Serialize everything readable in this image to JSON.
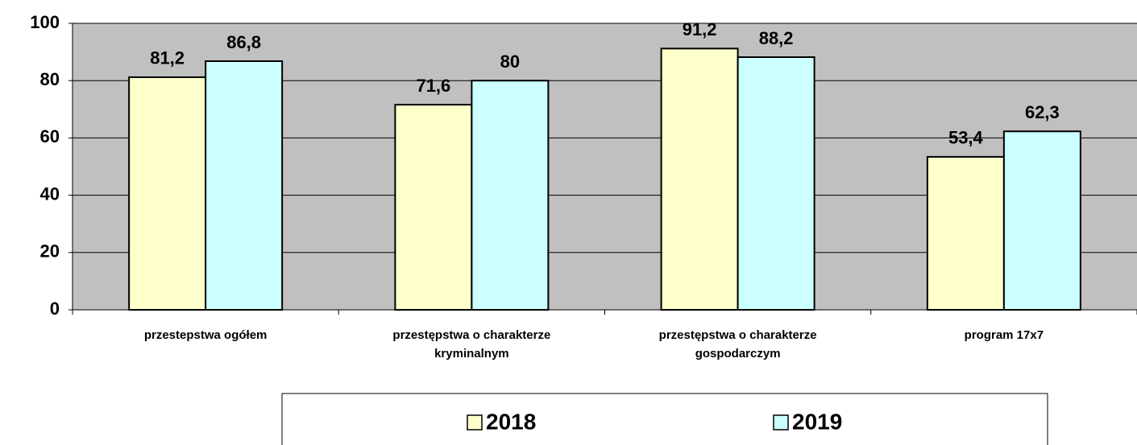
{
  "chart_data": {
    "type": "bar",
    "categories": [
      "przestepstwa ogółem",
      "przestępstwa o charakterze kryminalnym",
      "przestępstwa o charakterze gospodarczym",
      "program 17x7"
    ],
    "series": [
      {
        "name": "2018",
        "color": "#ffffcc",
        "values": [
          81.2,
          71.6,
          91.2,
          53.4
        ],
        "value_labels": [
          "81,2",
          "71,6",
          "91,2",
          "53,4"
        ]
      },
      {
        "name": "2019",
        "color": "#ccffff",
        "values": [
          86.8,
          80,
          88.2,
          62.3
        ],
        "value_labels": [
          "86,8",
          "80",
          "88,2",
          "62,3"
        ]
      }
    ],
    "ylim": [
      0,
      100
    ],
    "yticks": [
      0,
      20,
      40,
      60,
      80,
      100
    ],
    "grid": true,
    "plot_background": "#c0c0c0",
    "legend": "bottom"
  }
}
